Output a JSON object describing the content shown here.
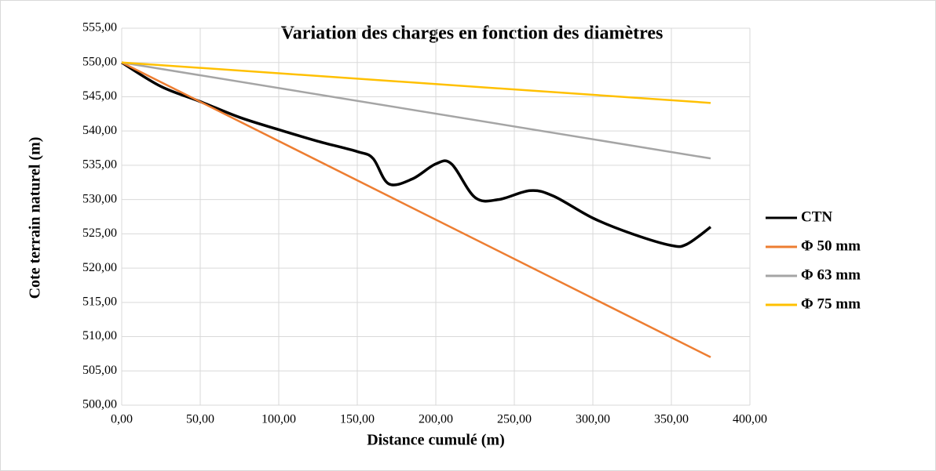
{
  "chart_data": {
    "type": "line",
    "title": "Variation des charges en fonction des diamètres",
    "x_label": "Distance cumulé (m)",
    "y_label": "Cote terrain naturel (m)",
    "xlim": [
      0,
      400
    ],
    "ylim": [
      500,
      555
    ],
    "xticks": [
      {
        "value": 0,
        "label": "0,00"
      },
      {
        "value": 50,
        "label": "50,00"
      },
      {
        "value": 100,
        "label": "100,00"
      },
      {
        "value": 150,
        "label": "150,00"
      },
      {
        "value": 200,
        "label": "200,00"
      },
      {
        "value": 250,
        "label": "250,00"
      },
      {
        "value": 300,
        "label": "300,00"
      },
      {
        "value": 350,
        "label": "350,00"
      },
      {
        "value": 400,
        "label": "400,00"
      }
    ],
    "yticks": [
      {
        "value": 500,
        "label": "500,00"
      },
      {
        "value": 505,
        "label": "505,00"
      },
      {
        "value": 510,
        "label": "510,00"
      },
      {
        "value": 515,
        "label": "515,00"
      },
      {
        "value": 520,
        "label": "520,00"
      },
      {
        "value": 525,
        "label": "525,00"
      },
      {
        "value": 530,
        "label": "530,00"
      },
      {
        "value": 535,
        "label": "535,00"
      },
      {
        "value": 540,
        "label": "540,00"
      },
      {
        "value": 545,
        "label": "545,00"
      },
      {
        "value": 550,
        "label": "550,00"
      },
      {
        "value": 555,
        "label": "555,00"
      }
    ],
    "grid": true,
    "legend": "right",
    "series": [
      {
        "name": "CTN",
        "color": "#000000",
        "smooth": true,
        "x": [
          0,
          25,
          50,
          75,
          100,
          125,
          150,
          160,
          170,
          185,
          200,
          210,
          225,
          240,
          260,
          275,
          300,
          325,
          350,
          360,
          375
        ],
        "values": [
          550,
          546.5,
          544.3,
          542,
          540.2,
          538.5,
          537,
          536,
          532.3,
          533,
          535.2,
          535.2,
          530.3,
          530,
          531.3,
          530.5,
          527.3,
          525,
          523.3,
          523.5,
          526
        ]
      },
      {
        "name": "Φ 50 mm",
        "color": "#ed7d31",
        "x": [
          0,
          375
        ],
        "values": [
          550,
          507
        ]
      },
      {
        "name": "Φ 63 mm",
        "color": "#a5a5a5",
        "x": [
          0,
          375
        ],
        "values": [
          550,
          536
        ]
      },
      {
        "name": "Φ 75 mm",
        "color": "#ffc000",
        "x": [
          0,
          375
        ],
        "values": [
          550,
          544.1
        ]
      }
    ]
  }
}
